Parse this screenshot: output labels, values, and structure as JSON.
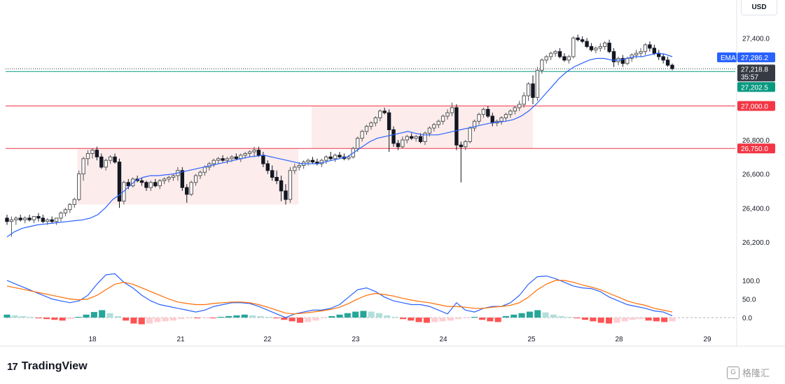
{
  "currency": "USD",
  "brand": "TradingView",
  "watermark": "格隆汇",
  "watermark_icon": "G",
  "chart_data": {
    "type": "candlestick",
    "price_axis": {
      "ticks": [
        26200,
        26400,
        26600,
        26800,
        27000,
        27400
      ],
      "tick_labels": [
        "26,200.0",
        "26,400.0",
        "26,600.0",
        "26,800.0",
        "27,000.0",
        "27,400.0"
      ],
      "range": [
        26080,
        27500
      ]
    },
    "time_axis": {
      "ticks": [
        18,
        21,
        22,
        23,
        24,
        25,
        28,
        29
      ],
      "tick_labels": [
        "18",
        "21",
        "22",
        "23",
        "24",
        "25",
        "28",
        "29"
      ],
      "range": [
        17,
        29.8
      ]
    },
    "price_markers": [
      {
        "label": "EMA",
        "value": "27,286.2",
        "color": "#2962ff"
      },
      {
        "value": "27,218.8",
        "sub": "35:57",
        "color": "#363a45"
      },
      {
        "value": "27,202.5",
        "color": "#089981"
      },
      {
        "value": "27,000.0",
        "color": "#f23645"
      },
      {
        "value": "26,750.0",
        "color": "#f23645"
      }
    ],
    "horizontal_lines": [
      {
        "value": 27000,
        "color": "#f23645"
      },
      {
        "value": 26750,
        "color": "#f23645"
      },
      {
        "value": 27202.5,
        "color": "#089981"
      },
      {
        "value": 27218.8,
        "color": "#363a45",
        "style": "dotted"
      }
    ],
    "zones": [
      {
        "x0": 17.83,
        "x1": 22.35,
        "y0": 26420,
        "y1": 26750,
        "color": "#fce4e4"
      },
      {
        "x0": 22.5,
        "x1": 25.05,
        "y0": 26750,
        "y1": 27000,
        "color": "#fce4e4"
      }
    ],
    "candles": [
      [
        26340,
        26360,
        26300,
        26320
      ],
      [
        26320,
        26350,
        26230,
        26330
      ],
      [
        26330,
        26350,
        26300,
        26340
      ],
      [
        26340,
        26360,
        26320,
        26330
      ],
      [
        26330,
        26350,
        26310,
        26340
      ],
      [
        26340,
        26360,
        26320,
        26330
      ],
      [
        26330,
        26350,
        26310,
        26350
      ],
      [
        26350,
        26370,
        26320,
        26340
      ],
      [
        26340,
        26360,
        26310,
        26320
      ],
      [
        26320,
        26340,
        26300,
        26330
      ],
      [
        26330,
        26350,
        26310,
        26320
      ],
      [
        26320,
        26340,
        26300,
        26340
      ],
      [
        26340,
        26380,
        26320,
        26370
      ],
      [
        26370,
        26400,
        26350,
        26390
      ],
      [
        26390,
        26430,
        26370,
        26420
      ],
      [
        26420,
        26460,
        26400,
        26450
      ],
      [
        26450,
        26620,
        26440,
        26600
      ],
      [
        26600,
        26700,
        26560,
        26690
      ],
      [
        26690,
        26740,
        26650,
        26720
      ],
      [
        26720,
        26750,
        26690,
        26740
      ],
      [
        26740,
        26760,
        26680,
        26700
      ],
      [
        26700,
        26720,
        26630,
        26640
      ],
      [
        26640,
        26690,
        26620,
        26680
      ],
      [
        26680,
        26710,
        26660,
        26700
      ],
      [
        26700,
        26720,
        26660,
        26670
      ],
      [
        26670,
        26690,
        26400,
        26440
      ],
      [
        26440,
        26560,
        26420,
        26550
      ],
      [
        26550,
        26570,
        26510,
        26530
      ],
      [
        26530,
        26580,
        26520,
        26570
      ],
      [
        26570,
        26590,
        26550,
        26560
      ],
      [
        26560,
        26580,
        26530,
        26550
      ],
      [
        26550,
        26560,
        26500,
        26520
      ],
      [
        26520,
        26560,
        26500,
        26550
      ],
      [
        26550,
        26570,
        26520,
        26530
      ],
      [
        26530,
        26570,
        26510,
        26560
      ],
      [
        26560,
        26580,
        26540,
        26570
      ],
      [
        26570,
        26590,
        26550,
        26580
      ],
      [
        26580,
        26600,
        26560,
        26590
      ],
      [
        26590,
        26640,
        26560,
        26620
      ],
      [
        26620,
        26640,
        26500,
        26520
      ],
      [
        26520,
        26540,
        26430,
        26480
      ],
      [
        26480,
        26560,
        26470,
        26550
      ],
      [
        26550,
        26600,
        26530,
        26590
      ],
      [
        26590,
        26620,
        26570,
        26610
      ],
      [
        26610,
        26650,
        26590,
        26640
      ],
      [
        26640,
        26670,
        26620,
        26660
      ],
      [
        26660,
        26690,
        26640,
        26680
      ],
      [
        26680,
        26700,
        26660,
        26690
      ],
      [
        26690,
        26710,
        26670,
        26680
      ],
      [
        26680,
        26700,
        26660,
        26690
      ],
      [
        26690,
        26710,
        26670,
        26700
      ],
      [
        26700,
        26720,
        26680,
        26690
      ],
      [
        26690,
        26720,
        26670,
        26710
      ],
      [
        26710,
        26730,
        26690,
        26720
      ],
      [
        26720,
        26740,
        26700,
        26730
      ],
      [
        26730,
        26760,
        26700,
        26740
      ],
      [
        26740,
        26760,
        26700,
        26710
      ],
      [
        26710,
        26730,
        26640,
        26660
      ],
      [
        26660,
        26680,
        26600,
        26620
      ],
      [
        26620,
        26650,
        26560,
        26580
      ],
      [
        26580,
        26620,
        26540,
        26560
      ],
      [
        26560,
        26590,
        26440,
        26500
      ],
      [
        26500,
        26540,
        26420,
        26450
      ],
      [
        26450,
        26640,
        26430,
        26620
      ],
      [
        26620,
        26660,
        26600,
        26640
      ],
      [
        26640,
        26670,
        26620,
        26650
      ],
      [
        26650,
        26680,
        26630,
        26670
      ],
      [
        26670,
        26690,
        26650,
        26680
      ],
      [
        26680,
        26700,
        26660,
        26670
      ],
      [
        26670,
        26690,
        26650,
        26660
      ],
      [
        26660,
        26690,
        26640,
        26680
      ],
      [
        26680,
        26710,
        26660,
        26700
      ],
      [
        26700,
        26730,
        26680,
        26690
      ],
      [
        26690,
        26720,
        26670,
        26710
      ],
      [
        26710,
        26730,
        26690,
        26700
      ],
      [
        26700,
        26720,
        26680,
        26690
      ],
      [
        26690,
        26710,
        26680,
        26700
      ],
      [
        26700,
        26760,
        26690,
        26750
      ],
      [
        26750,
        26820,
        26730,
        26810
      ],
      [
        26810,
        26860,
        26790,
        26850
      ],
      [
        26850,
        26890,
        26830,
        26880
      ],
      [
        26880,
        26910,
        26860,
        26900
      ],
      [
        26900,
        26940,
        26880,
        26930
      ],
      [
        26930,
        26980,
        26910,
        26970
      ],
      [
        26970,
        26990,
        26950,
        26960
      ],
      [
        26960,
        26980,
        26730,
        26860
      ],
      [
        26860,
        26880,
        26760,
        26780
      ],
      [
        26780,
        26800,
        26740,
        26760
      ],
      [
        26760,
        26820,
        26750,
        26800
      ],
      [
        26800,
        26830,
        26780,
        26820
      ],
      [
        26820,
        26840,
        26800,
        26810
      ],
      [
        26810,
        26830,
        26790,
        26820
      ],
      [
        26820,
        26840,
        26780,
        26790
      ],
      [
        26790,
        26850,
        26770,
        26840
      ],
      [
        26840,
        26880,
        26820,
        26870
      ],
      [
        26870,
        26900,
        26850,
        26890
      ],
      [
        26890,
        26920,
        26870,
        26910
      ],
      [
        26910,
        26950,
        26890,
        26940
      ],
      [
        26940,
        26980,
        26920,
        26960
      ],
      [
        26960,
        27020,
        26940,
        26990
      ],
      [
        26990,
        27010,
        26740,
        26770
      ],
      [
        26770,
        26790,
        26550,
        26760
      ],
      [
        26760,
        26800,
        26740,
        26790
      ],
      [
        26790,
        26880,
        26780,
        26870
      ],
      [
        26870,
        26920,
        26850,
        26910
      ],
      [
        26910,
        26960,
        26890,
        26950
      ],
      [
        26950,
        26990,
        26930,
        26980
      ],
      [
        26980,
        27000,
        26930,
        26940
      ],
      [
        26940,
        26960,
        26880,
        26900
      ],
      [
        26900,
        26920,
        26880,
        26910
      ],
      [
        26910,
        26940,
        26890,
        26930
      ],
      [
        26930,
        26960,
        26910,
        26950
      ],
      [
        26950,
        26980,
        26930,
        26970
      ],
      [
        26970,
        27000,
        26950,
        26990
      ],
      [
        26990,
        27030,
        26970,
        27010
      ],
      [
        27010,
        27080,
        26990,
        27060
      ],
      [
        27060,
        27140,
        27030,
        27130
      ],
      [
        27130,
        27180,
        27010,
        27050
      ],
      [
        27050,
        27230,
        27030,
        27210
      ],
      [
        27210,
        27280,
        27190,
        27270
      ],
      [
        27270,
        27300,
        27250,
        27290
      ],
      [
        27290,
        27320,
        27270,
        27310
      ],
      [
        27310,
        27330,
        27290,
        27320
      ],
      [
        27320,
        27340,
        27280,
        27290
      ],
      [
        27290,
        27310,
        27260,
        27270
      ],
      [
        27270,
        27300,
        27250,
        27290
      ],
      [
        27290,
        27410,
        27280,
        27400
      ],
      [
        27400,
        27420,
        27380,
        27390
      ],
      [
        27390,
        27410,
        27370,
        27380
      ],
      [
        27380,
        27400,
        27340,
        27350
      ],
      [
        27350,
        27370,
        27320,
        27330
      ],
      [
        27330,
        27350,
        27310,
        27340
      ],
      [
        27340,
        27370,
        27320,
        27350
      ],
      [
        27350,
        27380,
        27330,
        27370
      ],
      [
        27370,
        27390,
        27310,
        27320
      ],
      [
        27320,
        27340,
        27230,
        27260
      ],
      [
        27260,
        27290,
        27240,
        27280
      ],
      [
        27280,
        27300,
        27230,
        27250
      ],
      [
        27250,
        27290,
        27240,
        27280
      ],
      [
        27280,
        27310,
        27260,
        27300
      ],
      [
        27300,
        27330,
        27280,
        27310
      ],
      [
        27310,
        27340,
        27290,
        27320
      ],
      [
        27320,
        27370,
        27300,
        27360
      ],
      [
        27360,
        27380,
        27320,
        27340
      ],
      [
        27340,
        27360,
        27300,
        27310
      ],
      [
        27310,
        27330,
        27270,
        27290
      ],
      [
        27290,
        27310,
        27250,
        27270
      ],
      [
        27270,
        27290,
        27230,
        27240
      ],
      [
        27240,
        27250,
        27210,
        27220
      ]
    ],
    "ema_line": [
      26230,
      26260,
      26280,
      26290,
      26300,
      26305,
      26310,
      26315,
      26320,
      26325,
      26330,
      26340,
      26360,
      26400,
      26450,
      26480,
      26520,
      26560,
      26580,
      26590,
      26590,
      26595,
      26600,
      26610,
      26620,
      26630,
      26640,
      26650,
      26660,
      26670,
      26680,
      26690,
      26700,
      26705,
      26710,
      26700,
      26690,
      26680,
      26670,
      26660,
      26660,
      26660,
      26670,
      26680,
      26690,
      26700,
      26730,
      26760,
      26790,
      26810,
      26820,
      26830,
      26840,
      26850,
      26840,
      26830,
      26830,
      26830,
      26840,
      26850,
      26860,
      26870,
      26880,
      26890,
      26900,
      26905,
      26910,
      26920,
      26940,
      26970,
      27010,
      27060,
      27110,
      27160,
      27200,
      27230,
      27250,
      27270,
      27280,
      27280,
      27270,
      27270,
      27280,
      27290,
      27290,
      27300,
      27310,
      27305,
      27290
    ],
    "oscillator": {
      "ticks": [
        0,
        50,
        100
      ],
      "tick_labels": [
        "0.0",
        "50.0",
        "100.0"
      ],
      "range": [
        -30,
        130
      ],
      "fast": [
        100,
        90,
        80,
        70,
        60,
        50,
        45,
        40,
        45,
        60,
        90,
        115,
        118,
        95,
        80,
        60,
        45,
        35,
        30,
        25,
        20,
        15,
        20,
        30,
        35,
        40,
        40,
        38,
        30,
        20,
        10,
        0,
        10,
        15,
        20,
        20,
        25,
        35,
        55,
        75,
        80,
        70,
        55,
        45,
        40,
        35,
        35,
        30,
        20,
        10,
        40,
        20,
        15,
        25,
        30,
        30,
        40,
        60,
        90,
        110,
        112,
        105,
        95,
        85,
        80,
        78,
        70,
        55,
        45,
        35,
        30,
        25,
        18,
        15,
        5
      ],
      "slow": [
        85,
        80,
        75,
        70,
        65,
        60,
        55,
        50,
        48,
        50,
        60,
        75,
        90,
        95,
        90,
        80,
        70,
        60,
        50,
        42,
        38,
        35,
        35,
        38,
        40,
        42,
        42,
        40,
        35,
        28,
        20,
        12,
        10,
        12,
        15,
        18,
        22,
        28,
        38,
        50,
        60,
        65,
        62,
        58,
        52,
        47,
        43,
        40,
        35,
        30,
        30,
        28,
        25,
        25,
        28,
        30,
        33,
        40,
        55,
        75,
        90,
        100,
        100,
        95,
        88,
        82,
        75,
        65,
        55,
        45,
        38,
        33,
        25,
        20,
        15
      ],
      "histogram": [
        8,
        6,
        4,
        2,
        -2,
        -4,
        -6,
        -8,
        -4,
        2,
        8,
        15,
        20,
        12,
        4,
        -8,
        -16,
        -18,
        -16,
        -12,
        -10,
        -8,
        -4,
        -2,
        -2,
        -1,
        -1,
        2,
        4,
        6,
        8,
        6,
        4,
        2,
        -2,
        -6,
        -10,
        -14,
        -12,
        -8,
        -2,
        4,
        8,
        12,
        16,
        18,
        16,
        12,
        6,
        2,
        -4,
        -8,
        -12,
        -14,
        -12,
        -10,
        -8,
        -4,
        -2,
        2,
        -6,
        -10,
        -12,
        4,
        8,
        12,
        16,
        20,
        14,
        8,
        4,
        2,
        -2,
        -6,
        -10,
        -14,
        -16,
        -14,
        -10,
        -6,
        -4,
        -8,
        -10,
        -12,
        -10
      ]
    }
  }
}
